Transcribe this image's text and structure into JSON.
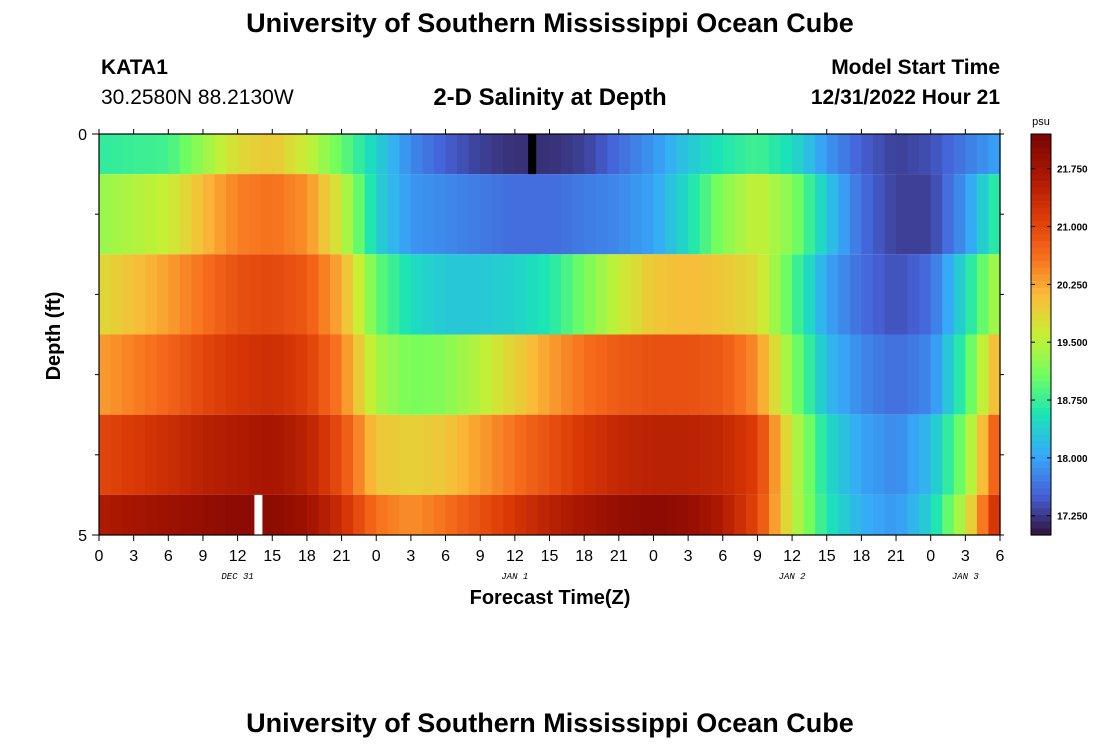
{
  "header": {
    "title": "University of Southern Mississippi Ocean Cube",
    "station": "KATA1",
    "coords": "30.2580N  88.2130W",
    "subtitle": "2-D Salinity at Depth",
    "model_label": "Model Start Time",
    "model_time": "12/31/2022 Hour 21"
  },
  "footer": {
    "title": "University of Southern Mississippi Ocean Cube"
  },
  "colors": {
    "marker_dark": "#000000",
    "marker_light": "#ffffff"
  },
  "chart_data": {
    "type": "heatmap",
    "title": "2-D Salinity at Depth",
    "xlabel": "Forecast Time(Z)",
    "ylabel": "Depth (ft)",
    "units": "psu",
    "x_range_hours": [
      0,
      78
    ],
    "y_ticks": [
      "0",
      "5"
    ],
    "x_tick_labels": [
      "0",
      "3",
      "6",
      "9",
      "12",
      "15",
      "18",
      "21",
      "0",
      "3",
      "6",
      "9",
      "12",
      "15",
      "18",
      "21",
      "0",
      "3",
      "6",
      "9",
      "12",
      "15",
      "18",
      "21",
      "0",
      "3",
      "6"
    ],
    "date_labels": [
      {
        "label": "DEC 31",
        "hour": 12
      },
      {
        "label": "JAN 1",
        "hour": 36
      },
      {
        "label": "JAN 2",
        "hour": 60
      },
      {
        "label": "JAN 3",
        "hour": 75
      }
    ],
    "colorbar": {
      "range": [
        17.0,
        22.2
      ],
      "tick_values": [
        21.75,
        21.0,
        20.25,
        19.5,
        18.75,
        18.0,
        17.25
      ],
      "tick_labels": [
        "21.750",
        "21.000",
        "20.250",
        "19.500",
        "18.750",
        "18.000",
        "17.250"
      ]
    },
    "markers": [
      {
        "name": "top-time-marker",
        "hour": 37.5,
        "layer": 0,
        "color": "dark"
      },
      {
        "name": "bottom-time-marker",
        "hour": 13.8,
        "layer": 5,
        "color": "light"
      }
    ],
    "layers": [
      {
        "name": "layer-1",
        "knots": [
          [
            0,
            18.7
          ],
          [
            6,
            18.8
          ],
          [
            9,
            19.3
          ],
          [
            12,
            19.8
          ],
          [
            15,
            20.0
          ],
          [
            18,
            19.6
          ],
          [
            21,
            19.0
          ],
          [
            24,
            18.4
          ],
          [
            27,
            17.8
          ],
          [
            30,
            17.5
          ],
          [
            33,
            17.3
          ],
          [
            36,
            17.2
          ],
          [
            39,
            17.2
          ],
          [
            42,
            17.3
          ],
          [
            45,
            17.6
          ],
          [
            48,
            17.9
          ],
          [
            51,
            18.3
          ],
          [
            54,
            18.6
          ],
          [
            57,
            18.8
          ],
          [
            60,
            18.5
          ],
          [
            63,
            17.9
          ],
          [
            66,
            17.5
          ],
          [
            69,
            17.3
          ],
          [
            72,
            17.4
          ],
          [
            75,
            17.7
          ],
          [
            78,
            18.0
          ]
        ]
      },
      {
        "name": "layer-2",
        "knots": [
          [
            0,
            19.3
          ],
          [
            6,
            19.6
          ],
          [
            9,
            20.1
          ],
          [
            12,
            20.5
          ],
          [
            15,
            20.6
          ],
          [
            18,
            20.4
          ],
          [
            21,
            19.6
          ],
          [
            24,
            18.4
          ],
          [
            27,
            17.9
          ],
          [
            30,
            17.8
          ],
          [
            33,
            17.7
          ],
          [
            36,
            17.6
          ],
          [
            39,
            17.6
          ],
          [
            42,
            17.7
          ],
          [
            45,
            17.8
          ],
          [
            48,
            18.0
          ],
          [
            51,
            18.5
          ],
          [
            54,
            19.2
          ],
          [
            57,
            19.6
          ],
          [
            60,
            19.2
          ],
          [
            63,
            18.3
          ],
          [
            66,
            17.6
          ],
          [
            69,
            17.3
          ],
          [
            72,
            17.3
          ],
          [
            75,
            17.9
          ],
          [
            78,
            18.8
          ]
        ]
      },
      {
        "name": "layer-3",
        "knots": [
          [
            0,
            19.8
          ],
          [
            6,
            20.3
          ],
          [
            9,
            20.6
          ],
          [
            12,
            20.9
          ],
          [
            15,
            21.0
          ],
          [
            18,
            20.8
          ],
          [
            21,
            20.2
          ],
          [
            24,
            19.0
          ],
          [
            27,
            18.5
          ],
          [
            30,
            18.3
          ],
          [
            33,
            18.3
          ],
          [
            36,
            18.4
          ],
          [
            39,
            18.6
          ],
          [
            42,
            19.1
          ],
          [
            45,
            19.6
          ],
          [
            48,
            20.0
          ],
          [
            51,
            20.1
          ],
          [
            54,
            20.0
          ],
          [
            57,
            19.8
          ],
          [
            60,
            18.9
          ],
          [
            63,
            18.0
          ],
          [
            66,
            17.6
          ],
          [
            69,
            17.4
          ],
          [
            72,
            17.6
          ],
          [
            75,
            18.5
          ],
          [
            78,
            19.5
          ]
        ]
      },
      {
        "name": "layer-4",
        "knots": [
          [
            0,
            20.3
          ],
          [
            6,
            20.7
          ],
          [
            9,
            21.0
          ],
          [
            12,
            21.2
          ],
          [
            15,
            21.3
          ],
          [
            18,
            21.1
          ],
          [
            21,
            20.5
          ],
          [
            24,
            19.4
          ],
          [
            27,
            19.1
          ],
          [
            30,
            19.2
          ],
          [
            33,
            19.5
          ],
          [
            36,
            19.9
          ],
          [
            39,
            20.3
          ],
          [
            42,
            20.6
          ],
          [
            45,
            20.8
          ],
          [
            48,
            20.9
          ],
          [
            51,
            20.9
          ],
          [
            54,
            20.8
          ],
          [
            57,
            20.4
          ],
          [
            60,
            19.2
          ],
          [
            63,
            18.2
          ],
          [
            66,
            17.8
          ],
          [
            69,
            17.6
          ],
          [
            72,
            17.8
          ],
          [
            75,
            18.8
          ],
          [
            78,
            20.3
          ]
        ]
      },
      {
        "name": "layer-5",
        "knots": [
          [
            0,
            21.0
          ],
          [
            6,
            21.3
          ],
          [
            9,
            21.5
          ],
          [
            12,
            21.6
          ],
          [
            15,
            21.7
          ],
          [
            18,
            21.5
          ],
          [
            21,
            20.9
          ],
          [
            24,
            20.0
          ],
          [
            27,
            19.9
          ],
          [
            30,
            20.0
          ],
          [
            33,
            20.3
          ],
          [
            36,
            20.6
          ],
          [
            39,
            20.9
          ],
          [
            42,
            21.2
          ],
          [
            45,
            21.4
          ],
          [
            48,
            21.5
          ],
          [
            51,
            21.5
          ],
          [
            54,
            21.4
          ],
          [
            57,
            21.1
          ],
          [
            60,
            19.6
          ],
          [
            63,
            18.5
          ],
          [
            66,
            18.0
          ],
          [
            69,
            17.8
          ],
          [
            72,
            18.2
          ],
          [
            75,
            19.2
          ],
          [
            78,
            21.0
          ]
        ]
      },
      {
        "name": "layer-6",
        "knots": [
          [
            0,
            21.6
          ],
          [
            6,
            21.8
          ],
          [
            9,
            21.9
          ],
          [
            12,
            22.0
          ],
          [
            15,
            22.0
          ],
          [
            18,
            21.8
          ],
          [
            21,
            21.3
          ],
          [
            24,
            20.6
          ],
          [
            27,
            20.4
          ],
          [
            30,
            20.6
          ],
          [
            33,
            20.9
          ],
          [
            36,
            21.2
          ],
          [
            39,
            21.5
          ],
          [
            42,
            21.7
          ],
          [
            45,
            21.9
          ],
          [
            48,
            22.0
          ],
          [
            51,
            21.9
          ],
          [
            54,
            21.6
          ],
          [
            57,
            21.0
          ],
          [
            60,
            19.6
          ],
          [
            63,
            18.6
          ],
          [
            66,
            18.1
          ],
          [
            69,
            17.9
          ],
          [
            72,
            18.4
          ],
          [
            75,
            19.6
          ],
          [
            78,
            21.5
          ]
        ]
      }
    ]
  }
}
